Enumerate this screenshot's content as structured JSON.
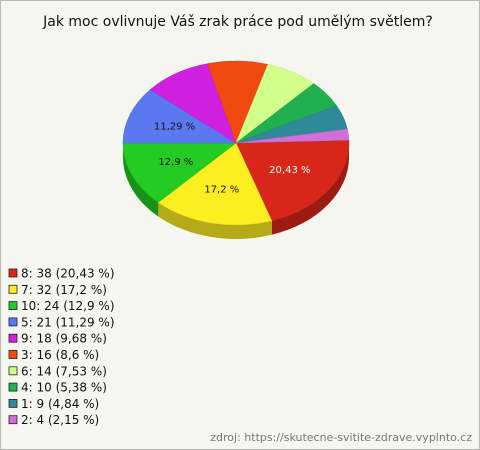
{
  "chart_data": {
    "type": "pie",
    "title": "Jak moc ovlivnuje Váš zrak práce pod umělým světlem?",
    "categories": [
      "8",
      "7",
      "10",
      "5",
      "9",
      "3",
      "6",
      "4",
      "1",
      "2"
    ],
    "values": [
      38,
      32,
      24,
      21,
      18,
      16,
      14,
      10,
      9,
      4
    ],
    "value_labels": [
      "20,43 %",
      "17,2 %",
      "12,9 %",
      "11,29 %",
      null,
      null,
      null,
      null,
      null,
      null
    ],
    "legend_labels": [
      "8: 38 (20,43 %)",
      "7: 32 (17,2 %)",
      "10: 24 (12,9 %)",
      "5: 21 (11,29 %)",
      "9: 18 (9,68 %)",
      "3: 16 (8,6 %)",
      "6: 14 (7,53 %)",
      "4: 10 (5,38 %)",
      "1: 9 (4,84 %)",
      "2: 4 (2,15 %)"
    ],
    "colors": [
      "#d9261a",
      "#fcee21",
      "#22cc22",
      "#5a78f0",
      "#d020e0",
      "#f04a10",
      "#d2ff8c",
      "#20b050",
      "#2e8a9a",
      "#d070d8"
    ],
    "source": "zdroj: https://skutecne-svitite-zdrave.vyplnto.cz"
  }
}
